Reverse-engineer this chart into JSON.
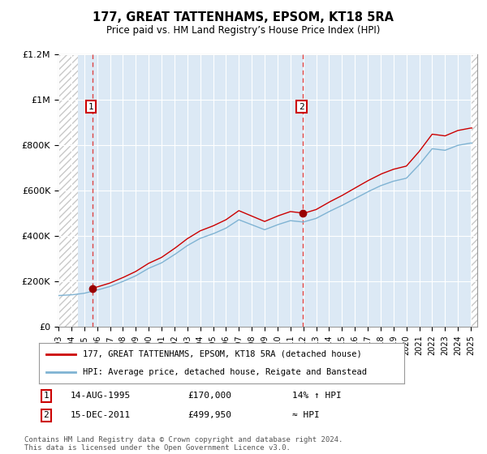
{
  "title": "177, GREAT TATTENHAMS, EPSOM, KT18 5RA",
  "subtitle": "Price paid vs. HM Land Registry’s House Price Index (HPI)",
  "legend_line1": "177, GREAT TATTENHAMS, EPSOM, KT18 5RA (detached house)",
  "legend_line2": "HPI: Average price, detached house, Reigate and Banstead",
  "annotation1_date": "14-AUG-1995",
  "annotation1_price": "£170,000",
  "annotation1_hpi": "14% ↑ HPI",
  "annotation2_date": "15-DEC-2011",
  "annotation2_price": "£499,950",
  "annotation2_hpi": "≈ HPI",
  "footer": "Contains HM Land Registry data © Crown copyright and database right 2024.\nThis data is licensed under the Open Government Licence v3.0.",
  "purchase1_year": 1995.62,
  "purchase1_value": 170000,
  "purchase2_year": 2011.96,
  "purchase2_value": 499950,
  "hpi_color": "#7fb3d3",
  "price_color": "#cc0000",
  "ylim": [
    0,
    1200000
  ],
  "xlim_start": 1993.0,
  "xlim_end": 2025.5,
  "yticks": [
    0,
    200000,
    400000,
    600000,
    800000,
    1000000,
    1200000
  ],
  "ytick_labels": [
    "£0",
    "£200K",
    "£400K",
    "£600K",
    "£800K",
    "£1M",
    "£1.2M"
  ],
  "xticks": [
    1993,
    1994,
    1995,
    1996,
    1997,
    1998,
    1999,
    2000,
    2001,
    2002,
    2003,
    2004,
    2005,
    2006,
    2007,
    2008,
    2009,
    2010,
    2011,
    2012,
    2013,
    2014,
    2015,
    2016,
    2017,
    2018,
    2019,
    2020,
    2021,
    2022,
    2023,
    2024,
    2025
  ],
  "bg_color": "#dce9f5",
  "hatch_color": "#c8c8c8"
}
